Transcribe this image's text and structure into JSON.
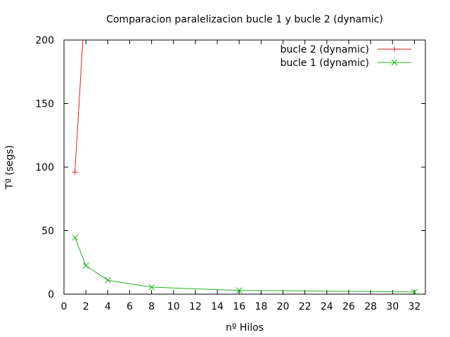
{
  "chart_data": {
    "type": "line",
    "title": "Comparacion paralelizacion bucle 1 y bucle 2 (dynamic)",
    "xlabel": "nº Hilos",
    "ylabel": "Tº (segs)",
    "xlim": [
      0,
      33
    ],
    "ylim": [
      0,
      200
    ],
    "xticks": [
      0,
      2,
      4,
      6,
      8,
      10,
      12,
      14,
      16,
      18,
      20,
      22,
      24,
      26,
      28,
      30,
      32
    ],
    "yticks": [
      0,
      50,
      100,
      150,
      200
    ],
    "grid": false,
    "legend_position": "top-right",
    "series": [
      {
        "name": "bucle 2 (dynamic)",
        "color": "#e41a1c",
        "marker": "plus",
        "points": [
          [
            1,
            96
          ],
          [
            2,
            240
          ]
        ]
      },
      {
        "name": "bucle 1 (dynamic)",
        "color": "#1fb01f",
        "marker": "cross",
        "points": [
          [
            1,
            44.5
          ],
          [
            2,
            22.5
          ],
          [
            4,
            11
          ],
          [
            8,
            5.5
          ],
          [
            16,
            3
          ],
          [
            32,
            1.7
          ]
        ]
      }
    ]
  }
}
